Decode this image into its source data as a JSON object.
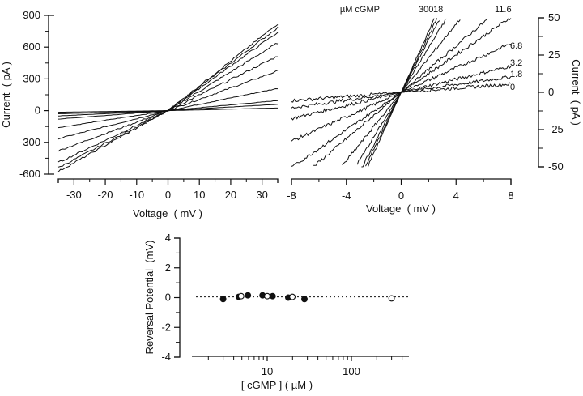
{
  "chart_data": [
    {
      "id": "panel-a",
      "type": "line",
      "title": "",
      "xlabel": "Voltage  ( mV )",
      "ylabel": "Current  ( pA )",
      "xlim": [
        -35,
        35
      ],
      "ylim": [
        -600,
        900
      ],
      "xticks": [
        -30,
        -20,
        -10,
        0,
        10,
        20,
        30
      ],
      "xtick_labels": [
        "-30",
        "-20",
        "-10",
        "0",
        "10",
        "20",
        "30"
      ],
      "yticks": [
        -600,
        -300,
        0,
        300,
        600,
        900
      ],
      "ytick_labels": [
        "-600",
        "-300",
        "0",
        "300",
        "600",
        "900"
      ],
      "grid": false,
      "series": [
        {
          "name": "trace-1",
          "x": [
            -35,
            0,
            35
          ],
          "y": [
            -15,
            0,
            25
          ]
        },
        {
          "name": "trace-2",
          "x": [
            -35,
            0,
            35
          ],
          "y": [
            -30,
            0,
            60
          ]
        },
        {
          "name": "trace-3",
          "x": [
            -35,
            0,
            35
          ],
          "y": [
            -50,
            0,
            95
          ]
        },
        {
          "name": "trace-4",
          "x": [
            -35,
            0,
            35
          ],
          "y": [
            -80,
            0,
            210
          ]
        },
        {
          "name": "trace-5",
          "x": [
            -35,
            0,
            35
          ],
          "y": [
            -160,
            0,
            375
          ]
        },
        {
          "name": "trace-6",
          "x": [
            -35,
            0,
            35
          ],
          "y": [
            -265,
            0,
            515
          ]
        },
        {
          "name": "trace-7",
          "x": [
            -35,
            0,
            35
          ],
          "y": [
            -380,
            0,
            640
          ]
        },
        {
          "name": "trace-8",
          "x": [
            -35,
            0,
            35
          ],
          "y": [
            -490,
            0,
            740
          ]
        },
        {
          "name": "trace-9",
          "x": [
            -35,
            0,
            35
          ],
          "y": [
            -540,
            0,
            785
          ]
        },
        {
          "name": "trace-10",
          "x": [
            -35,
            0,
            35
          ],
          "y": [
            -575,
            0,
            820
          ]
        }
      ]
    },
    {
      "id": "panel-b",
      "type": "line",
      "title": "",
      "xlabel": "Voltage  ( mV )",
      "ylabel": "Current  ( pA )",
      "xlim": [
        -8,
        8
      ],
      "ylim": [
        -50,
        50
      ],
      "xticks": [
        -8,
        -4,
        0,
        4,
        8
      ],
      "xtick_labels": [
        "-8",
        "-4",
        "0",
        "4",
        "8"
      ],
      "yticks": [
        -50,
        -25,
        0,
        25,
        50
      ],
      "ytick_labels": [
        "-50",
        "-25",
        "0",
        "25",
        "50"
      ],
      "yaxis_side": "right",
      "grid": false,
      "legend_header": "µM cGMP",
      "series": [
        {
          "name": "0",
          "label": "0",
          "slope": 0.7
        },
        {
          "name": "1.8",
          "label": "1.8",
          "slope": 1.3
        },
        {
          "name": "3.2",
          "label": "3.2",
          "slope": 2.2
        },
        {
          "name": "6.8",
          "label": "6.8",
          "slope": 4.1
        },
        {
          "name": "unlabeled-1",
          "label": "",
          "slope": 6.3
        },
        {
          "name": "11.6",
          "label": "11.6",
          "slope": 7.8
        },
        {
          "name": "unlabeled-2",
          "label": "",
          "slope": 11.5
        },
        {
          "name": "18",
          "label": "18",
          "slope": 15.0
        },
        {
          "name": "unlabeled-3",
          "label": "",
          "slope": 17.5
        },
        {
          "name": "unlabeled-4",
          "label": "",
          "slope": 19.0
        },
        {
          "name": "300",
          "label": "300",
          "slope": 20.5
        }
      ],
      "annotations": [
        "300",
        "18",
        "11.6",
        "6.8",
        "3.2",
        "1.8",
        "0"
      ]
    },
    {
      "id": "panel-c",
      "type": "scatter",
      "title": "",
      "xlabel": "[ cGMP ] ( µM )",
      "ylabel": "Reversal Potential  (mV)",
      "xscale": "log",
      "xlim": [
        1.5,
        400
      ],
      "ylim": [
        -4,
        4
      ],
      "xtick_labels": [
        "10",
        "100"
      ],
      "xticks": [
        10,
        100
      ],
      "yticks": [
        -4,
        -2,
        0,
        2,
        4
      ],
      "ytick_labels": [
        "-4",
        "-2",
        "0",
        "2",
        "4"
      ],
      "grid": false,
      "reference_line": {
        "y": 0,
        "style": "dotted"
      },
      "series": [
        {
          "name": "filled",
          "marker": "filled-circle",
          "x": [
            3.0,
            4.6,
            5.9,
            8.8,
            11.6,
            17.8,
            27.7
          ],
          "y": [
            -0.1,
            0.05,
            0.15,
            0.15,
            0.1,
            0.0,
            -0.1
          ]
        },
        {
          "name": "open",
          "marker": "open-circle",
          "x": [
            4.9,
            10.0,
            19.9,
            300
          ],
          "y": [
            0.1,
            0.1,
            0.05,
            -0.05
          ]
        }
      ]
    }
  ]
}
